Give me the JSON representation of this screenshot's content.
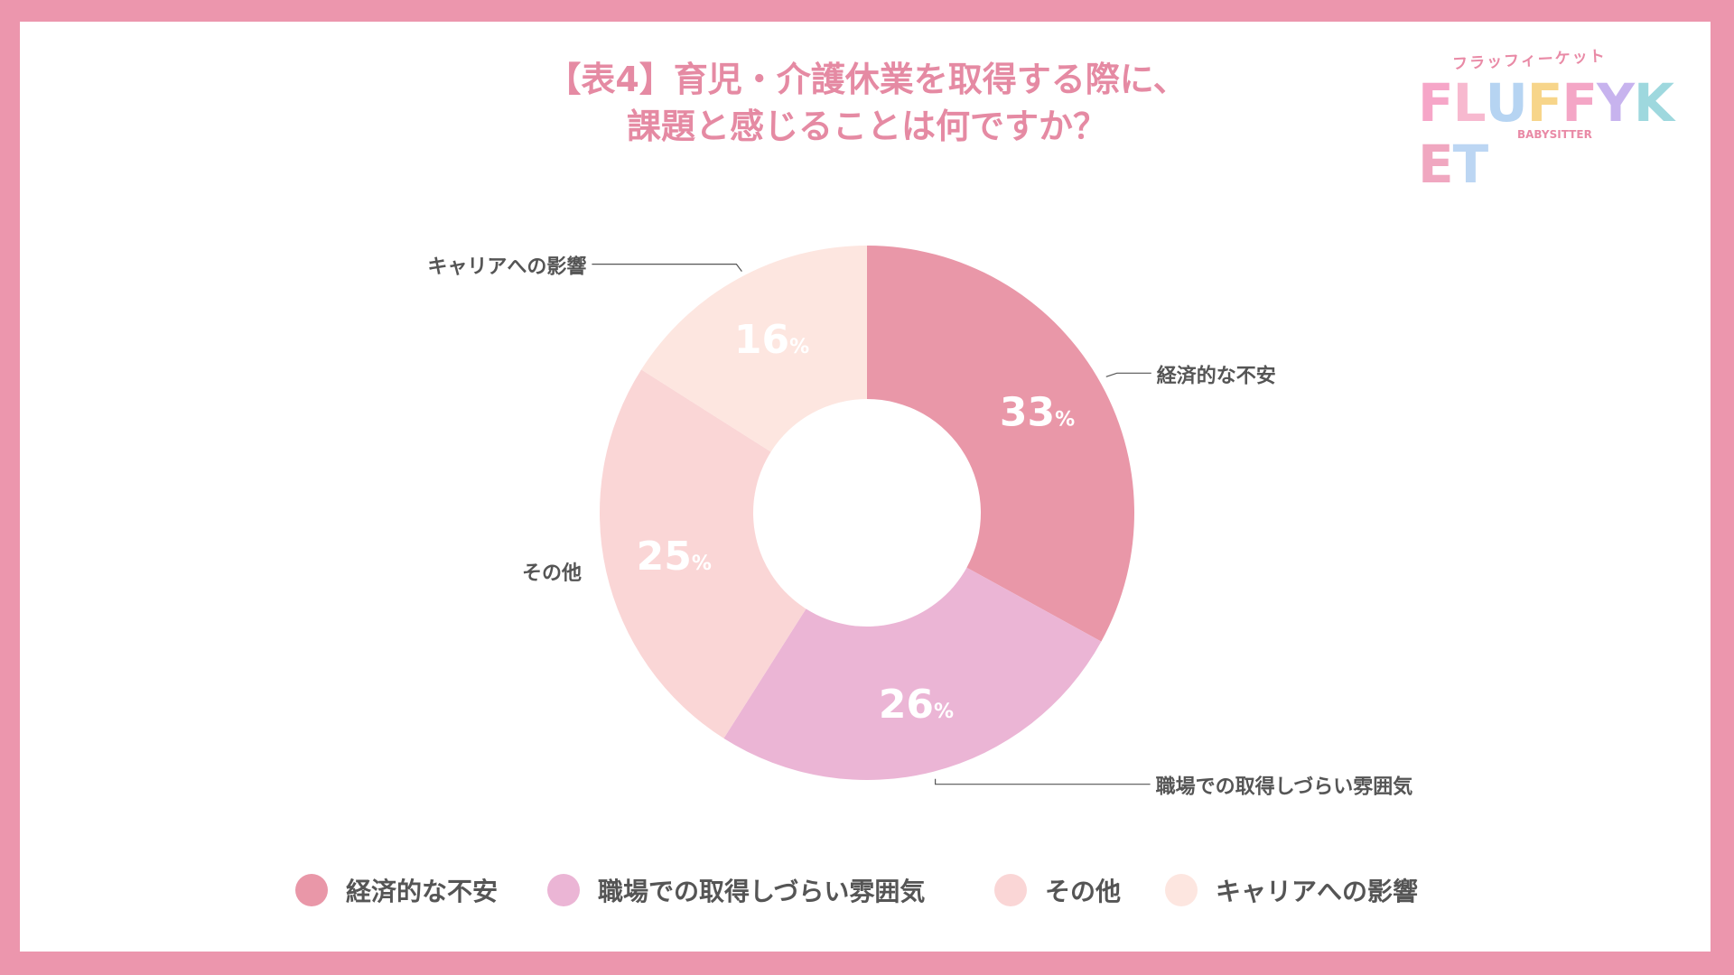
{
  "title_lines": [
    "【表4】育児・介護休業を取得する際に、",
    "課題と感じることは何ですか？"
  ],
  "logo": {
    "kana": "フラッフィーケット",
    "word": "FLUFFYKET",
    "sub": "BABYSITTER"
  },
  "chart_data": {
    "type": "pie",
    "donut": true,
    "title": "【表4】育児・介護休業を取得する際に、課題と感じることは何ですか？",
    "categories": [
      "経済的な不安",
      "職場での取得しづらい雰囲気",
      "その他",
      "キャリアへの影響"
    ],
    "values": [
      33,
      26,
      25,
      16
    ],
    "unit": "%",
    "colors": [
      "#e997a8",
      "#ebb5d5",
      "#fad6d6",
      "#fde6e0"
    ],
    "legend_position": "bottom"
  }
}
